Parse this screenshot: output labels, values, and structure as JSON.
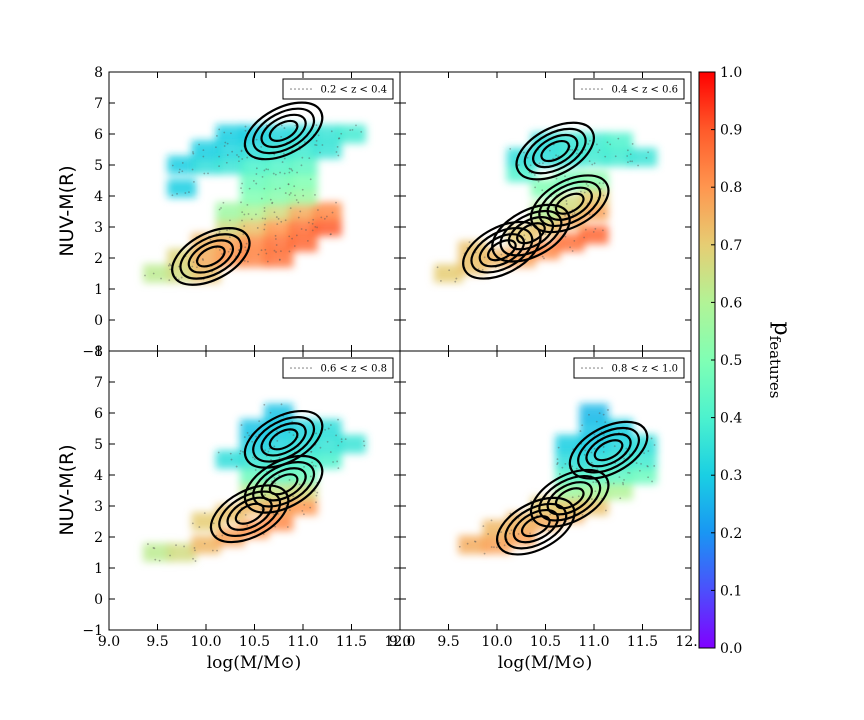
{
  "chart_data": {
    "type": "heatmap",
    "panels": [
      {
        "label": "0.2 < z < 0.4",
        "contour_peaks": [
          {
            "x": 10.8,
            "y": 6.1
          },
          {
            "x": 10.05,
            "y": 2.05
          }
        ],
        "cells": [
          {
            "x": 9.5,
            "y": 1.5,
            "p": 0.62
          },
          {
            "x": 9.75,
            "y": 1.5,
            "p": 0.66
          },
          {
            "x": 10.0,
            "y": 1.5,
            "p": 0.72
          },
          {
            "x": 9.75,
            "y": 2.0,
            "p": 0.68
          },
          {
            "x": 10.0,
            "y": 2.0,
            "p": 0.76
          },
          {
            "x": 10.25,
            "y": 2.0,
            "p": 0.8
          },
          {
            "x": 10.5,
            "y": 2.0,
            "p": 0.83
          },
          {
            "x": 10.75,
            "y": 2.0,
            "p": 0.86
          },
          {
            "x": 10.0,
            "y": 2.5,
            "p": 0.74
          },
          {
            "x": 10.25,
            "y": 2.5,
            "p": 0.78
          },
          {
            "x": 10.5,
            "y": 2.5,
            "p": 0.82
          },
          {
            "x": 10.75,
            "y": 2.5,
            "p": 0.86
          },
          {
            "x": 11.0,
            "y": 2.5,
            "p": 0.88
          },
          {
            "x": 10.25,
            "y": 3.0,
            "p": 0.66
          },
          {
            "x": 10.5,
            "y": 3.0,
            "p": 0.72
          },
          {
            "x": 10.75,
            "y": 3.0,
            "p": 0.8
          },
          {
            "x": 11.0,
            "y": 3.0,
            "p": 0.86
          },
          {
            "x": 11.25,
            "y": 3.0,
            "p": 0.9
          },
          {
            "x": 10.25,
            "y": 3.5,
            "p": 0.56
          },
          {
            "x": 10.5,
            "y": 3.5,
            "p": 0.6
          },
          {
            "x": 10.75,
            "y": 3.5,
            "p": 0.66
          },
          {
            "x": 11.0,
            "y": 3.5,
            "p": 0.76
          },
          {
            "x": 11.25,
            "y": 3.5,
            "p": 0.82
          },
          {
            "x": 10.5,
            "y": 4.0,
            "p": 0.5
          },
          {
            "x": 10.75,
            "y": 4.0,
            "p": 0.52
          },
          {
            "x": 11.0,
            "y": 4.0,
            "p": 0.56
          },
          {
            "x": 10.5,
            "y": 4.5,
            "p": 0.46
          },
          {
            "x": 10.75,
            "y": 4.5,
            "p": 0.48
          },
          {
            "x": 11.0,
            "y": 4.5,
            "p": 0.5
          },
          {
            "x": 9.75,
            "y": 5.0,
            "p": 0.3
          },
          {
            "x": 10.0,
            "y": 5.0,
            "p": 0.34
          },
          {
            "x": 10.25,
            "y": 5.0,
            "p": 0.36
          },
          {
            "x": 10.5,
            "y": 5.0,
            "p": 0.4
          },
          {
            "x": 10.75,
            "y": 5.0,
            "p": 0.42
          },
          {
            "x": 11.0,
            "y": 5.0,
            "p": 0.44
          },
          {
            "x": 10.0,
            "y": 5.5,
            "p": 0.3
          },
          {
            "x": 10.25,
            "y": 5.5,
            "p": 0.32
          },
          {
            "x": 10.5,
            "y": 5.5,
            "p": 0.34
          },
          {
            "x": 10.75,
            "y": 5.5,
            "p": 0.36
          },
          {
            "x": 11.0,
            "y": 5.5,
            "p": 0.38
          },
          {
            "x": 11.25,
            "y": 5.5,
            "p": 0.36
          },
          {
            "x": 10.25,
            "y": 6.0,
            "p": 0.3
          },
          {
            "x": 10.5,
            "y": 6.0,
            "p": 0.3
          },
          {
            "x": 10.75,
            "y": 6.0,
            "p": 0.32
          },
          {
            "x": 11.0,
            "y": 6.0,
            "p": 0.34
          },
          {
            "x": 11.25,
            "y": 6.0,
            "p": 0.36
          },
          {
            "x": 11.5,
            "y": 6.0,
            "p": 0.38
          },
          {
            "x": 9.75,
            "y": 4.25,
            "p": 0.3
          }
        ]
      },
      {
        "label": "0.4 < z < 0.6",
        "contour_peaks": [
          {
            "x": 10.75,
            "y": 3.75
          },
          {
            "x": 10.35,
            "y": 2.8
          },
          {
            "x": 10.05,
            "y": 2.25
          },
          {
            "x": 10.6,
            "y": 5.45
          }
        ],
        "cells": [
          {
            "x": 9.5,
            "y": 1.5,
            "p": 0.7
          },
          {
            "x": 9.75,
            "y": 1.75,
            "p": 0.72
          },
          {
            "x": 10.0,
            "y": 2.0,
            "p": 0.74
          },
          {
            "x": 10.25,
            "y": 2.0,
            "p": 0.78
          },
          {
            "x": 10.5,
            "y": 2.25,
            "p": 0.82
          },
          {
            "x": 10.75,
            "y": 2.5,
            "p": 0.86
          },
          {
            "x": 11.0,
            "y": 2.75,
            "p": 0.88
          },
          {
            "x": 10.25,
            "y": 2.75,
            "p": 0.7
          },
          {
            "x": 10.5,
            "y": 3.0,
            "p": 0.72
          },
          {
            "x": 10.75,
            "y": 3.25,
            "p": 0.76
          },
          {
            "x": 11.0,
            "y": 3.5,
            "p": 0.78
          },
          {
            "x": 10.5,
            "y": 3.5,
            "p": 0.6
          },
          {
            "x": 10.75,
            "y": 3.75,
            "p": 0.66
          },
          {
            "x": 11.0,
            "y": 4.0,
            "p": 0.7
          },
          {
            "x": 10.5,
            "y": 4.25,
            "p": 0.5
          },
          {
            "x": 10.75,
            "y": 4.5,
            "p": 0.48
          },
          {
            "x": 11.0,
            "y": 4.5,
            "p": 0.52
          },
          {
            "x": 10.25,
            "y": 4.75,
            "p": 0.4
          },
          {
            "x": 10.25,
            "y": 5.25,
            "p": 0.34
          },
          {
            "x": 10.5,
            "y": 5.25,
            "p": 0.34
          },
          {
            "x": 10.75,
            "y": 5.25,
            "p": 0.36
          },
          {
            "x": 11.0,
            "y": 5.25,
            "p": 0.38
          },
          {
            "x": 11.25,
            "y": 5.25,
            "p": 0.38
          },
          {
            "x": 11.5,
            "y": 5.25,
            "p": 0.36
          },
          {
            "x": 10.5,
            "y": 5.75,
            "p": 0.34
          },
          {
            "x": 10.75,
            "y": 5.75,
            "p": 0.36
          },
          {
            "x": 11.0,
            "y": 5.75,
            "p": 0.38
          },
          {
            "x": 11.25,
            "y": 5.75,
            "p": 0.4
          },
          {
            "x": 9.75,
            "y": 2.25,
            "p": 0.72
          }
        ]
      },
      {
        "label": "0.6 < z < 0.8",
        "contour_peaks": [
          {
            "x": 10.8,
            "y": 5.15
          },
          {
            "x": 10.8,
            "y": 3.7
          },
          {
            "x": 10.45,
            "y": 2.75
          }
        ],
        "cells": [
          {
            "x": 9.5,
            "y": 1.5,
            "p": 0.62
          },
          {
            "x": 9.75,
            "y": 1.5,
            "p": 0.66
          },
          {
            "x": 10.0,
            "y": 1.75,
            "p": 0.74
          },
          {
            "x": 10.25,
            "y": 2.0,
            "p": 0.78
          },
          {
            "x": 10.5,
            "y": 2.25,
            "p": 0.8
          },
          {
            "x": 10.75,
            "y": 2.5,
            "p": 0.82
          },
          {
            "x": 10.0,
            "y": 2.5,
            "p": 0.7
          },
          {
            "x": 10.25,
            "y": 2.75,
            "p": 0.72
          },
          {
            "x": 10.5,
            "y": 3.0,
            "p": 0.74
          },
          {
            "x": 10.75,
            "y": 3.0,
            "p": 0.76
          },
          {
            "x": 11.0,
            "y": 3.0,
            "p": 0.8
          },
          {
            "x": 10.5,
            "y": 3.5,
            "p": 0.62
          },
          {
            "x": 10.75,
            "y": 3.5,
            "p": 0.64
          },
          {
            "x": 11.0,
            "y": 3.5,
            "p": 0.66
          },
          {
            "x": 10.5,
            "y": 4.0,
            "p": 0.46
          },
          {
            "x": 10.75,
            "y": 4.0,
            "p": 0.44
          },
          {
            "x": 11.0,
            "y": 4.0,
            "p": 0.46
          },
          {
            "x": 10.25,
            "y": 4.5,
            "p": 0.34
          },
          {
            "x": 10.5,
            "y": 4.5,
            "p": 0.36
          },
          {
            "x": 10.75,
            "y": 4.5,
            "p": 0.38
          },
          {
            "x": 11.0,
            "y": 4.5,
            "p": 0.4
          },
          {
            "x": 11.25,
            "y": 4.5,
            "p": 0.4
          },
          {
            "x": 10.5,
            "y": 5.0,
            "p": 0.3
          },
          {
            "x": 10.75,
            "y": 5.0,
            "p": 0.32
          },
          {
            "x": 11.0,
            "y": 5.0,
            "p": 0.34
          },
          {
            "x": 11.25,
            "y": 5.0,
            "p": 0.36
          },
          {
            "x": 11.5,
            "y": 5.0,
            "p": 0.36
          },
          {
            "x": 10.5,
            "y": 5.5,
            "p": 0.28
          },
          {
            "x": 10.75,
            "y": 5.5,
            "p": 0.3
          },
          {
            "x": 11.0,
            "y": 5.5,
            "p": 0.32
          },
          {
            "x": 11.25,
            "y": 5.5,
            "p": 0.34
          },
          {
            "x": 10.75,
            "y": 6.0,
            "p": 0.28
          }
        ]
      },
      {
        "label": "0.8 < z < 1.0",
        "contour_peaks": [
          {
            "x": 11.15,
            "y": 4.8
          },
          {
            "x": 10.75,
            "y": 3.25
          },
          {
            "x": 10.4,
            "y": 2.35
          }
        ],
        "cells": [
          {
            "x": 9.75,
            "y": 1.75,
            "p": 0.76
          },
          {
            "x": 10.0,
            "y": 1.75,
            "p": 0.78
          },
          {
            "x": 10.25,
            "y": 2.0,
            "p": 0.78
          },
          {
            "x": 10.0,
            "y": 2.25,
            "p": 0.74
          },
          {
            "x": 10.25,
            "y": 2.5,
            "p": 0.74
          },
          {
            "x": 10.5,
            "y": 2.5,
            "p": 0.76
          },
          {
            "x": 10.75,
            "y": 2.75,
            "p": 0.76
          },
          {
            "x": 10.5,
            "y": 3.0,
            "p": 0.7
          },
          {
            "x": 10.75,
            "y": 3.0,
            "p": 0.7
          },
          {
            "x": 11.0,
            "y": 3.0,
            "p": 0.72
          },
          {
            "x": 10.75,
            "y": 3.5,
            "p": 0.56
          },
          {
            "x": 11.0,
            "y": 3.5,
            "p": 0.58
          },
          {
            "x": 11.25,
            "y": 3.5,
            "p": 0.6
          },
          {
            "x": 10.75,
            "y": 4.0,
            "p": 0.42
          },
          {
            "x": 11.0,
            "y": 4.0,
            "p": 0.42
          },
          {
            "x": 11.25,
            "y": 4.0,
            "p": 0.44
          },
          {
            "x": 11.5,
            "y": 4.0,
            "p": 0.46
          },
          {
            "x": 10.75,
            "y": 4.5,
            "p": 0.34
          },
          {
            "x": 11.0,
            "y": 4.5,
            "p": 0.34
          },
          {
            "x": 11.25,
            "y": 4.5,
            "p": 0.36
          },
          {
            "x": 11.5,
            "y": 4.5,
            "p": 0.38
          },
          {
            "x": 10.75,
            "y": 5.0,
            "p": 0.3
          },
          {
            "x": 11.0,
            "y": 5.0,
            "p": 0.3
          },
          {
            "x": 11.25,
            "y": 5.0,
            "p": 0.32
          },
          {
            "x": 11.5,
            "y": 5.0,
            "p": 0.34
          },
          {
            "x": 11.0,
            "y": 5.5,
            "p": 0.28
          },
          {
            "x": 11.25,
            "y": 5.5,
            "p": 0.3
          },
          {
            "x": 11.0,
            "y": 6.0,
            "p": 0.26
          }
        ]
      }
    ],
    "xlabel": "log(M/M⊙)",
    "ylabel": "NUV-M(R)",
    "xlim": [
      9.0,
      12.0
    ],
    "ylim": [
      -1,
      8
    ],
    "x_ticks": [
      "9.0",
      "9.5",
      "10.0",
      "10.5",
      "11.0",
      "11.5",
      "12.0"
    ],
    "y_ticks": [
      "−1",
      "0",
      "1",
      "2",
      "3",
      "4",
      "5",
      "6",
      "7",
      "8"
    ],
    "colorbar": {
      "label": "p",
      "label_subscript": "features",
      "range": [
        0.0,
        1.0
      ],
      "ticks": [
        "0.0",
        "0.1",
        "0.2",
        "0.3",
        "0.4",
        "0.5",
        "0.6",
        "0.7",
        "0.8",
        "0.9",
        "1.0"
      ],
      "colormap": "rainbow"
    },
    "grid": false,
    "legend_placement": "top-right",
    "contour_color": "#000000"
  }
}
